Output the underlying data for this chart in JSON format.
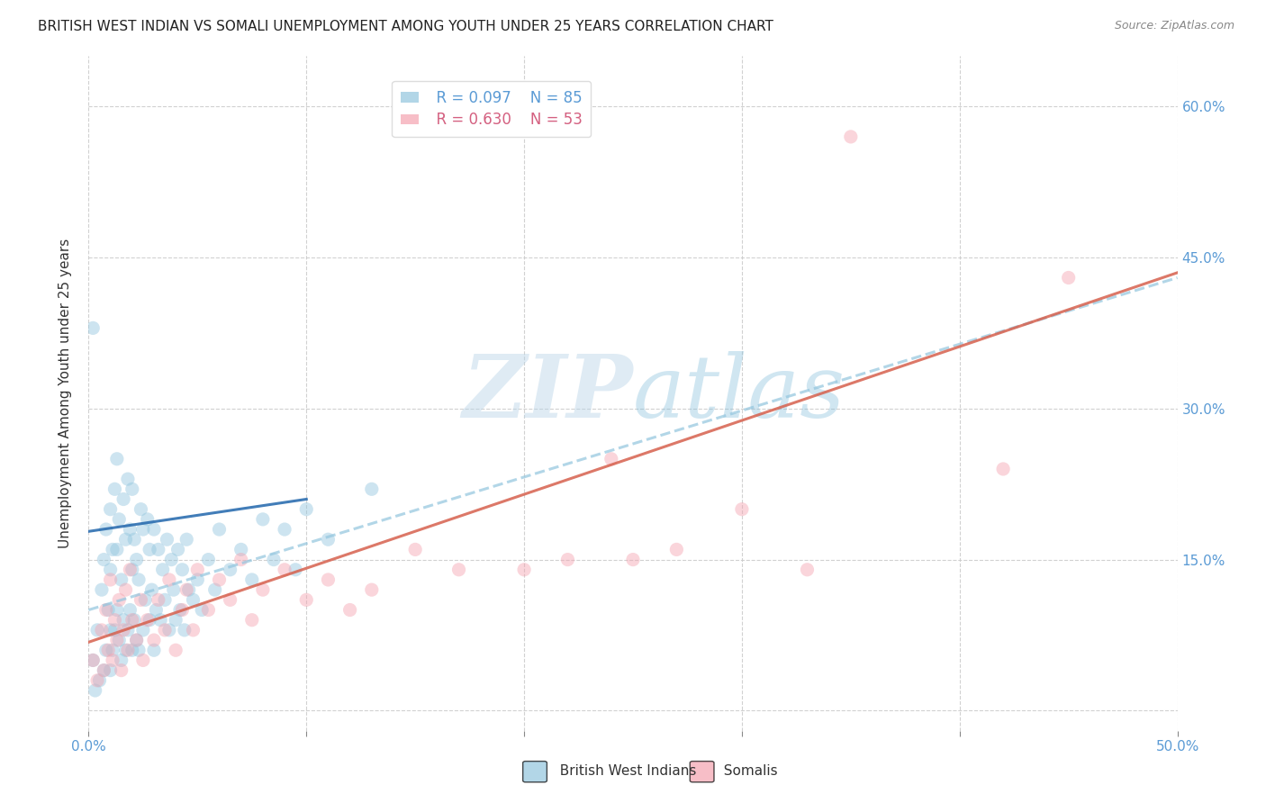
{
  "title": "BRITISH WEST INDIAN VS SOMALI UNEMPLOYMENT AMONG YOUTH UNDER 25 YEARS CORRELATION CHART",
  "source": "Source: ZipAtlas.com",
  "ylabel": "Unemployment Among Youth under 25 years",
  "xlim": [
    0.0,
    0.5
  ],
  "ylim": [
    -0.02,
    0.65
  ],
  "xtick_vals": [
    0.0,
    0.1,
    0.2,
    0.3,
    0.4,
    0.5
  ],
  "ytick_vals": [
    0.0,
    0.15,
    0.3,
    0.45,
    0.6
  ],
  "right_ytick_color": "#5b9bd5",
  "grid_color": "#cccccc",
  "background_color": "#ffffff",
  "watermark_zip": "ZIP",
  "watermark_atlas": "atlas",
  "legend_r1": "R = 0.097",
  "legend_n1": "N = 85",
  "legend_r2": "R = 0.630",
  "legend_n2": "N = 53",
  "blue_color": "#92c5de",
  "pink_color": "#f4a3b0",
  "blue_line_color": "#2166ac",
  "pink_line_color": "#d6604d",
  "bwi_line_x": [
    0.0,
    0.1
  ],
  "bwi_line_y": [
    0.178,
    0.21
  ],
  "somali_line_x": [
    0.0,
    0.5
  ],
  "somali_line_y": [
    0.068,
    0.435
  ],
  "bwi_dashed_line_x": [
    0.0,
    0.5
  ],
  "bwi_dashed_line_y": [
    0.1,
    0.43
  ],
  "bwi_x": [
    0.002,
    0.003,
    0.004,
    0.005,
    0.006,
    0.007,
    0.007,
    0.008,
    0.008,
    0.009,
    0.01,
    0.01,
    0.01,
    0.01,
    0.011,
    0.011,
    0.012,
    0.012,
    0.013,
    0.013,
    0.013,
    0.014,
    0.014,
    0.015,
    0.015,
    0.016,
    0.016,
    0.017,
    0.017,
    0.018,
    0.018,
    0.019,
    0.019,
    0.02,
    0.02,
    0.02,
    0.021,
    0.021,
    0.022,
    0.022,
    0.023,
    0.023,
    0.024,
    0.025,
    0.025,
    0.026,
    0.027,
    0.028,
    0.028,
    0.029,
    0.03,
    0.03,
    0.031,
    0.032,
    0.033,
    0.034,
    0.035,
    0.036,
    0.037,
    0.038,
    0.039,
    0.04,
    0.041,
    0.042,
    0.043,
    0.044,
    0.045,
    0.046,
    0.048,
    0.05,
    0.052,
    0.055,
    0.058,
    0.06,
    0.065,
    0.07,
    0.075,
    0.08,
    0.085,
    0.09,
    0.095,
    0.1,
    0.11,
    0.13,
    0.002
  ],
  "bwi_y": [
    0.05,
    0.02,
    0.08,
    0.03,
    0.12,
    0.04,
    0.15,
    0.06,
    0.18,
    0.1,
    0.04,
    0.08,
    0.14,
    0.2,
    0.06,
    0.16,
    0.08,
    0.22,
    0.1,
    0.16,
    0.25,
    0.07,
    0.19,
    0.05,
    0.13,
    0.09,
    0.21,
    0.06,
    0.17,
    0.08,
    0.23,
    0.1,
    0.18,
    0.06,
    0.14,
    0.22,
    0.09,
    0.17,
    0.07,
    0.15,
    0.06,
    0.13,
    0.2,
    0.08,
    0.18,
    0.11,
    0.19,
    0.09,
    0.16,
    0.12,
    0.06,
    0.18,
    0.1,
    0.16,
    0.09,
    0.14,
    0.11,
    0.17,
    0.08,
    0.15,
    0.12,
    0.09,
    0.16,
    0.1,
    0.14,
    0.08,
    0.17,
    0.12,
    0.11,
    0.13,
    0.1,
    0.15,
    0.12,
    0.18,
    0.14,
    0.16,
    0.13,
    0.19,
    0.15,
    0.18,
    0.14,
    0.2,
    0.17,
    0.22,
    0.38
  ],
  "somali_x": [
    0.002,
    0.004,
    0.006,
    0.007,
    0.008,
    0.009,
    0.01,
    0.011,
    0.012,
    0.013,
    0.014,
    0.015,
    0.016,
    0.017,
    0.018,
    0.019,
    0.02,
    0.022,
    0.024,
    0.025,
    0.027,
    0.03,
    0.032,
    0.035,
    0.037,
    0.04,
    0.043,
    0.045,
    0.048,
    0.05,
    0.055,
    0.06,
    0.065,
    0.07,
    0.075,
    0.08,
    0.09,
    0.1,
    0.11,
    0.12,
    0.13,
    0.15,
    0.17,
    0.2,
    0.22,
    0.24,
    0.25,
    0.27,
    0.3,
    0.33,
    0.35,
    0.42,
    0.45
  ],
  "somali_y": [
    0.05,
    0.03,
    0.08,
    0.04,
    0.1,
    0.06,
    0.13,
    0.05,
    0.09,
    0.07,
    0.11,
    0.04,
    0.08,
    0.12,
    0.06,
    0.14,
    0.09,
    0.07,
    0.11,
    0.05,
    0.09,
    0.07,
    0.11,
    0.08,
    0.13,
    0.06,
    0.1,
    0.12,
    0.08,
    0.14,
    0.1,
    0.13,
    0.11,
    0.15,
    0.09,
    0.12,
    0.14,
    0.11,
    0.13,
    0.1,
    0.12,
    0.16,
    0.14,
    0.14,
    0.15,
    0.25,
    0.15,
    0.16,
    0.2,
    0.14,
    0.57,
    0.24,
    0.43
  ],
  "title_fontsize": 11,
  "source_fontsize": 9,
  "axis_label_fontsize": 11,
  "tick_fontsize": 11,
  "legend_fontsize": 12,
  "marker_size": 120,
  "marker_alpha": 0.45,
  "line_width": 2.2
}
